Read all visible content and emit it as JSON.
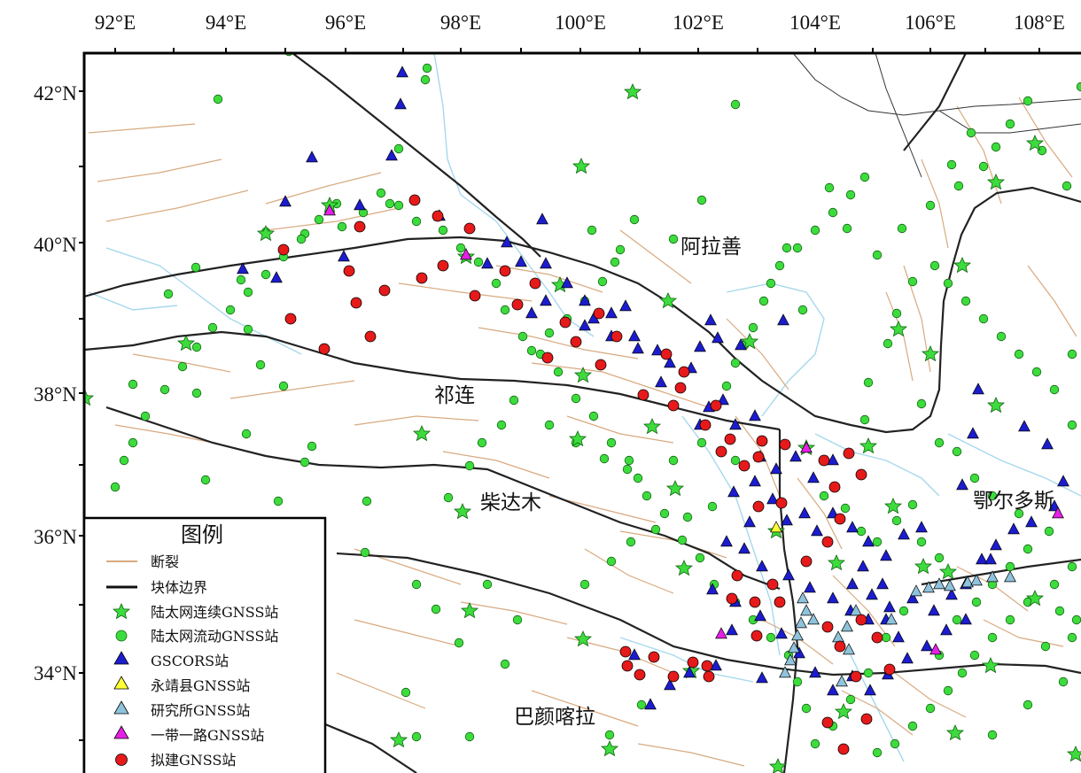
{
  "map": {
    "longitude_labels": [
      "92°E",
      "94°E",
      "96°E",
      "98°E",
      "100°E",
      "102°E",
      "104°E",
      "106°E",
      "108°E"
    ],
    "latitude_labels": [
      "42°N",
      "40°N",
      "38°N",
      "36°N",
      "34°N"
    ],
    "regions": [
      {
        "name": "阿拉善"
      },
      {
        "name": "祁连"
      },
      {
        "name": "柴达木"
      },
      {
        "name": "鄂尔多斯"
      },
      {
        "name": "巴颜喀拉"
      }
    ],
    "colors": {
      "fault": "#d8aa80",
      "block_boundary": "#222222",
      "river": "#a6d8ec",
      "province_boundary": "#333333",
      "continuous_station": "#3ddc3d",
      "campaign_station": "#3ddc3d",
      "gscors_station": "#1c1ccf",
      "yongjing_station": "#ffff33",
      "institute_station": "#8fc3dc",
      "belt_road_station": "#e61fe6",
      "planned_station": "#e61a1a"
    }
  },
  "legend": {
    "title": "图例",
    "items": [
      {
        "label": "断裂",
        "symbol": "fault-line"
      },
      {
        "label": "块体边界",
        "symbol": "block-boundary-line"
      },
      {
        "label": "陆太网连续GNSS站",
        "symbol": "green-star"
      },
      {
        "label": "陆太网流动GNSS站",
        "symbol": "green-circle"
      },
      {
        "label": "GSCORS站",
        "symbol": "blue-triangle"
      },
      {
        "label": "永靖县GNSS站",
        "symbol": "yellow-triangle"
      },
      {
        "label": "研究所GNSS站",
        "symbol": "lightblue-triangle"
      },
      {
        "label": "一带一路GNSS站",
        "symbol": "magenta-triangle"
      },
      {
        "label": "拟建GNSS站",
        "symbol": "red-circle"
      }
    ]
  }
}
